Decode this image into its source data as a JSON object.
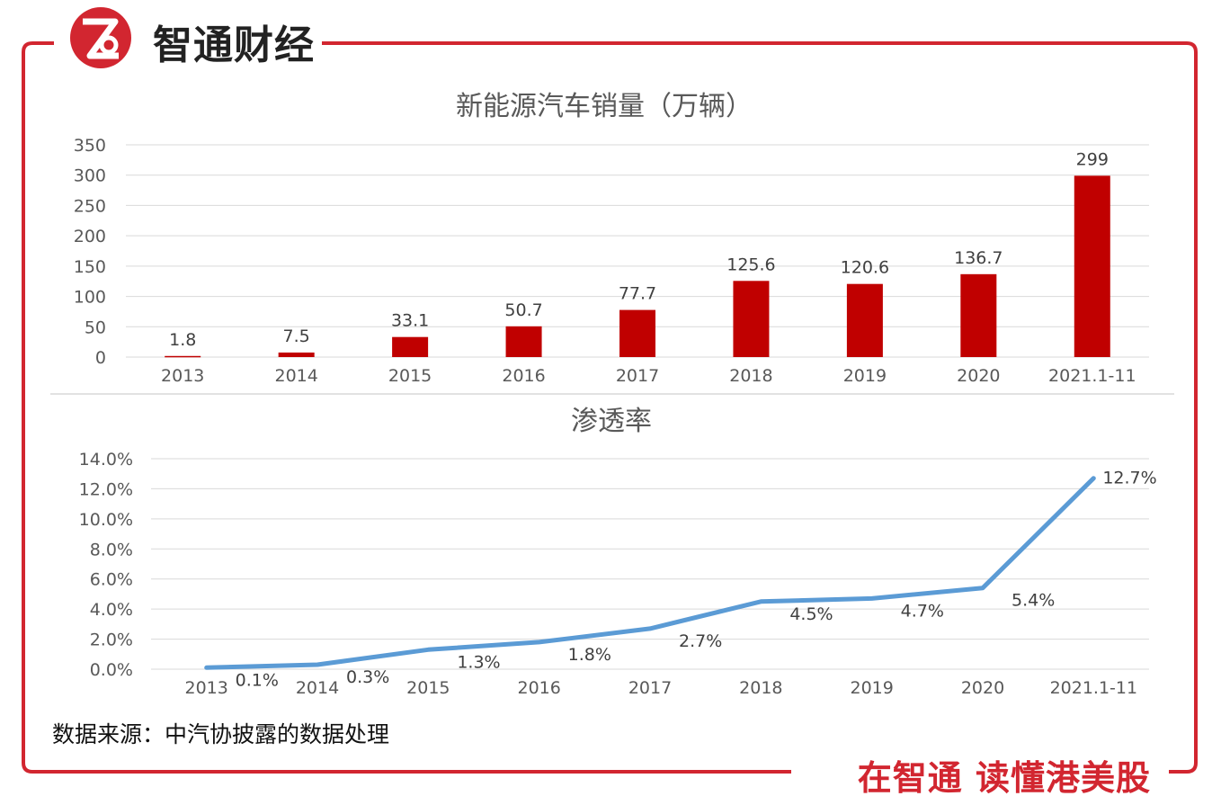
{
  "brand": {
    "logo_name": "智通财经",
    "slogan": "在智通 读懂港美股",
    "accent": "#d22630"
  },
  "source_note": "数据来源：中汽协披露的数据处理",
  "chart_data": [
    {
      "type": "bar",
      "title": "新能源汽车销量（万辆）",
      "categories": [
        "2013",
        "2014",
        "2015",
        "2016",
        "2017",
        "2018",
        "2019",
        "2020",
        "2021.1-11"
      ],
      "values": [
        1.8,
        7.5,
        33.1,
        50.7,
        77.7,
        125.6,
        120.6,
        136.7,
        299
      ],
      "data_labels": [
        "1.8",
        "7.5",
        "33.1",
        "50.7",
        "77.7",
        "125.6",
        "120.6",
        "136.7",
        "299"
      ],
      "ylim": [
        0,
        350
      ],
      "yticks": [
        0,
        50,
        100,
        150,
        200,
        250,
        300,
        350
      ],
      "ytick_labels": [
        "0",
        "50",
        "100",
        "150",
        "200",
        "250",
        "300",
        "350"
      ],
      "grid": true,
      "color": "#c00000"
    },
    {
      "type": "line",
      "title": "渗透率",
      "categories": [
        "2013",
        "2014",
        "2015",
        "2016",
        "2017",
        "2018",
        "2019",
        "2020",
        "2021.1-11"
      ],
      "values": [
        0.1,
        0.3,
        1.3,
        1.8,
        2.7,
        4.5,
        4.7,
        5.4,
        12.7
      ],
      "data_labels": [
        "0.1%",
        "0.3%",
        "1.3%",
        "1.8%",
        "2.7%",
        "4.5%",
        "4.7%",
        "5.4%",
        "12.7%"
      ],
      "ylim": [
        0,
        14
      ],
      "yticks": [
        0,
        2,
        4,
        6,
        8,
        10,
        12,
        14
      ],
      "ytick_labels": [
        "0.0%",
        "2.0%",
        "4.0%",
        "6.0%",
        "8.0%",
        "10.0%",
        "12.0%",
        "14.0%"
      ],
      "grid": true,
      "color": "#5b9bd5"
    }
  ]
}
